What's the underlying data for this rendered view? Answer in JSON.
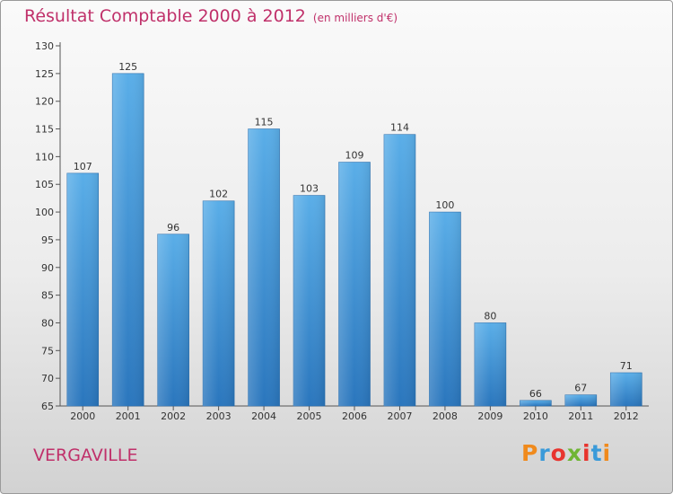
{
  "chart_data": {
    "type": "bar",
    "title": "Résultat Comptable 2000 à 2012",
    "subtitle": "(en milliers d'€)",
    "categories": [
      "2000",
      "2001",
      "2002",
      "2003",
      "2004",
      "2005",
      "2006",
      "2007",
      "2008",
      "2009",
      "2010",
      "2011",
      "2012"
    ],
    "values": [
      107,
      125,
      96,
      102,
      115,
      103,
      109,
      114,
      100,
      80,
      66,
      67,
      71
    ],
    "ylim": [
      65,
      130
    ],
    "yticks": [
      65,
      70,
      75,
      80,
      85,
      90,
      95,
      100,
      105,
      110,
      115,
      120,
      125,
      130
    ],
    "grid": false,
    "bar_color": "#3b8fd6"
  },
  "place_name": "VERGAVILLE",
  "brand": {
    "text": "Proxiti",
    "colors": [
      "#f08a1c",
      "#3a9ad9",
      "#e8342e",
      "#6fb534",
      "#e8342e",
      "#3a9ad9",
      "#f08a1c"
    ]
  }
}
